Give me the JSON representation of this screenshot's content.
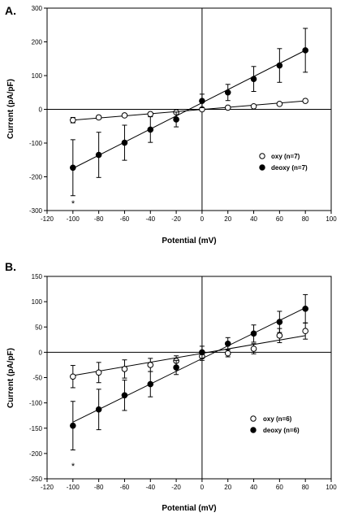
{
  "chart_data": [
    {
      "panel_label": "A.",
      "type": "scatter",
      "xlabel": "Potential (mV)",
      "ylabel": "Current (pA/pF)",
      "xlim": [
        -120,
        100
      ],
      "ylim": [
        -300,
        300
      ],
      "x_ticks": [
        "-120",
        "-100",
        "-80",
        "-60",
        "-40",
        "-20",
        "0",
        "20",
        "40",
        "60",
        "80",
        "100"
      ],
      "y_ticks": [
        "-300",
        "-200",
        "-100",
        "0",
        "100",
        "200",
        "300"
      ],
      "legend_position": "right",
      "annotation": "*",
      "annotation_x": -100,
      "series": [
        {
          "name": "oxy (n=7)",
          "marker": "open-circle",
          "x": [
            -100,
            -80,
            -60,
            -40,
            -20,
            0,
            20,
            40,
            60,
            80
          ],
          "y": [
            -32,
            -24,
            -18,
            -14,
            -9,
            0,
            5,
            9,
            16,
            25
          ],
          "err": [
            8,
            5,
            4,
            4,
            3,
            3,
            3,
            4,
            4,
            5
          ],
          "fit": [
            [
              -100,
              -32
            ],
            [
              80,
              25
            ]
          ]
        },
        {
          "name": "deoxy (n=7)",
          "marker": "filled-circle",
          "x": [
            -100,
            -80,
            -60,
            -40,
            -20,
            0,
            20,
            40,
            60,
            80
          ],
          "y": [
            -173,
            -135,
            -99,
            -60,
            -30,
            25,
            50,
            90,
            130,
            175
          ],
          "err": [
            83,
            67,
            52,
            38,
            22,
            20,
            24,
            37,
            50,
            65
          ],
          "fit": [
            [
              -100,
              -175
            ],
            [
              80,
              175
            ]
          ]
        }
      ]
    },
    {
      "panel_label": "B.",
      "type": "scatter",
      "xlabel": "Potential (mV)",
      "ylabel": "Current (pA/pF)",
      "xlim": [
        -120,
        100
      ],
      "ylim": [
        -250,
        150
      ],
      "x_ticks": [
        "-120",
        "-100",
        "-80",
        "-60",
        "-40",
        "-20",
        "0",
        "20",
        "40",
        "60",
        "80",
        "100"
      ],
      "y_ticks": [
        "-250",
        "-200",
        "-150",
        "-100",
        "-50",
        "0",
        "50",
        "100",
        "150"
      ],
      "legend_position": "right",
      "annotation": "*",
      "annotation_x": -100,
      "series": [
        {
          "name": "oxy (n=6)",
          "marker": "open-circle",
          "x": [
            -100,
            -80,
            -60,
            -40,
            -20,
            0,
            20,
            40,
            60,
            80
          ],
          "y": [
            -48,
            -40,
            -33,
            -25,
            -17,
            -8,
            -2,
            7,
            33,
            42
          ],
          "err": [
            22,
            20,
            18,
            13,
            10,
            8,
            7,
            10,
            14,
            16
          ],
          "fit": [
            [
              -100,
              -46
            ],
            [
              80,
              33
            ]
          ]
        },
        {
          "name": "deoxy (n=6)",
          "marker": "filled-circle",
          "x": [
            -100,
            -80,
            -60,
            -40,
            -20,
            0,
            20,
            40,
            60,
            80
          ],
          "y": [
            -145,
            -113,
            -85,
            -63,
            -30,
            0,
            17,
            37,
            60,
            86
          ],
          "err": [
            48,
            40,
            30,
            25,
            14,
            12,
            12,
            17,
            21,
            28
          ],
          "fit": [
            [
              -100,
              -138
            ],
            [
              80,
              88
            ]
          ]
        }
      ]
    }
  ]
}
